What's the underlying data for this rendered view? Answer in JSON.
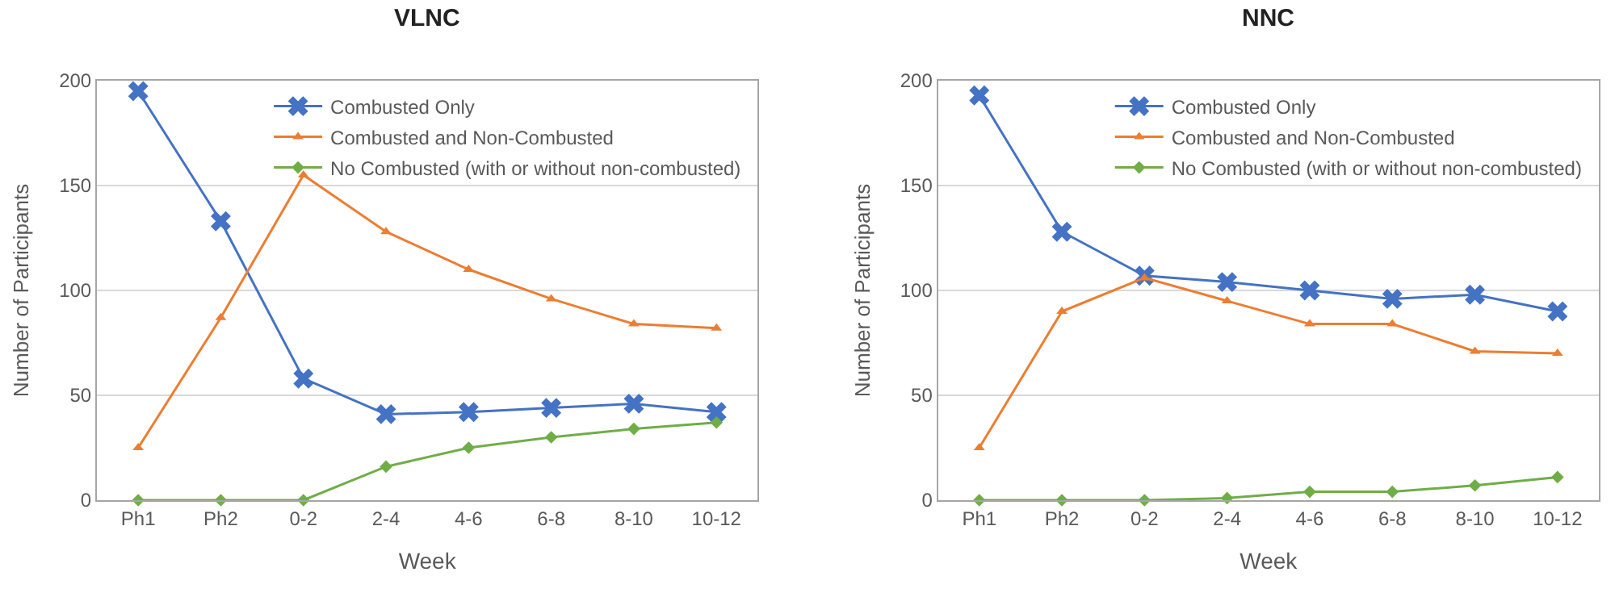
{
  "chart_data": [
    {
      "type": "line",
      "title": "VLNC",
      "xlabel": "Week",
      "ylabel": "Number of Participants",
      "categories": [
        "Ph1",
        "Ph2",
        "0-2",
        "2-4",
        "4-6",
        "6-8",
        "8-10",
        "10-12"
      ],
      "ylim": [
        0,
        200
      ],
      "yticks": [
        0,
        50,
        100,
        150,
        200
      ],
      "grid": "y",
      "legend": "top right",
      "line_style": "solid",
      "series": [
        {
          "name": "Combusted Only",
          "color": "#4472c4",
          "marker": "cross",
          "values": [
            195,
            133,
            58,
            41,
            42,
            44,
            46,
            42
          ]
        },
        {
          "name": "Combusted and Non-Combusted",
          "color": "#ed7d31",
          "marker": "triangle",
          "values": [
            25,
            87,
            155,
            128,
            110,
            96,
            84,
            82
          ]
        },
        {
          "name": "No Combusted (with or without non-combusted)",
          "color": "#70ad47",
          "marker": "diamond",
          "values": [
            0,
            0,
            0,
            16,
            25,
            30,
            34,
            37
          ]
        }
      ]
    },
    {
      "type": "line",
      "title": "NNC",
      "xlabel": "Week",
      "ylabel": "Number of Participants",
      "categories": [
        "Ph1",
        "Ph2",
        "0-2",
        "2-4",
        "4-6",
        "6-8",
        "8-10",
        "10-12"
      ],
      "ylim": [
        0,
        200
      ],
      "yticks": [
        0,
        50,
        100,
        150,
        200
      ],
      "grid": "y",
      "legend": "top right",
      "line_style": "solid",
      "series": [
        {
          "name": "Combusted Only",
          "color": "#4472c4",
          "marker": "cross",
          "values": [
            193,
            128,
            107,
            104,
            100,
            96,
            98,
            90
          ]
        },
        {
          "name": "Combusted and Non-Combusted",
          "color": "#ed7d31",
          "marker": "triangle",
          "values": [
            25,
            90,
            106,
            95,
            84,
            84,
            71,
            70
          ]
        },
        {
          "name": "No Combusted (with or without non-combusted)",
          "color": "#70ad47",
          "marker": "diamond",
          "values": [
            0,
            0,
            0,
            1,
            4,
            4,
            7,
            11
          ]
        }
      ]
    }
  ]
}
